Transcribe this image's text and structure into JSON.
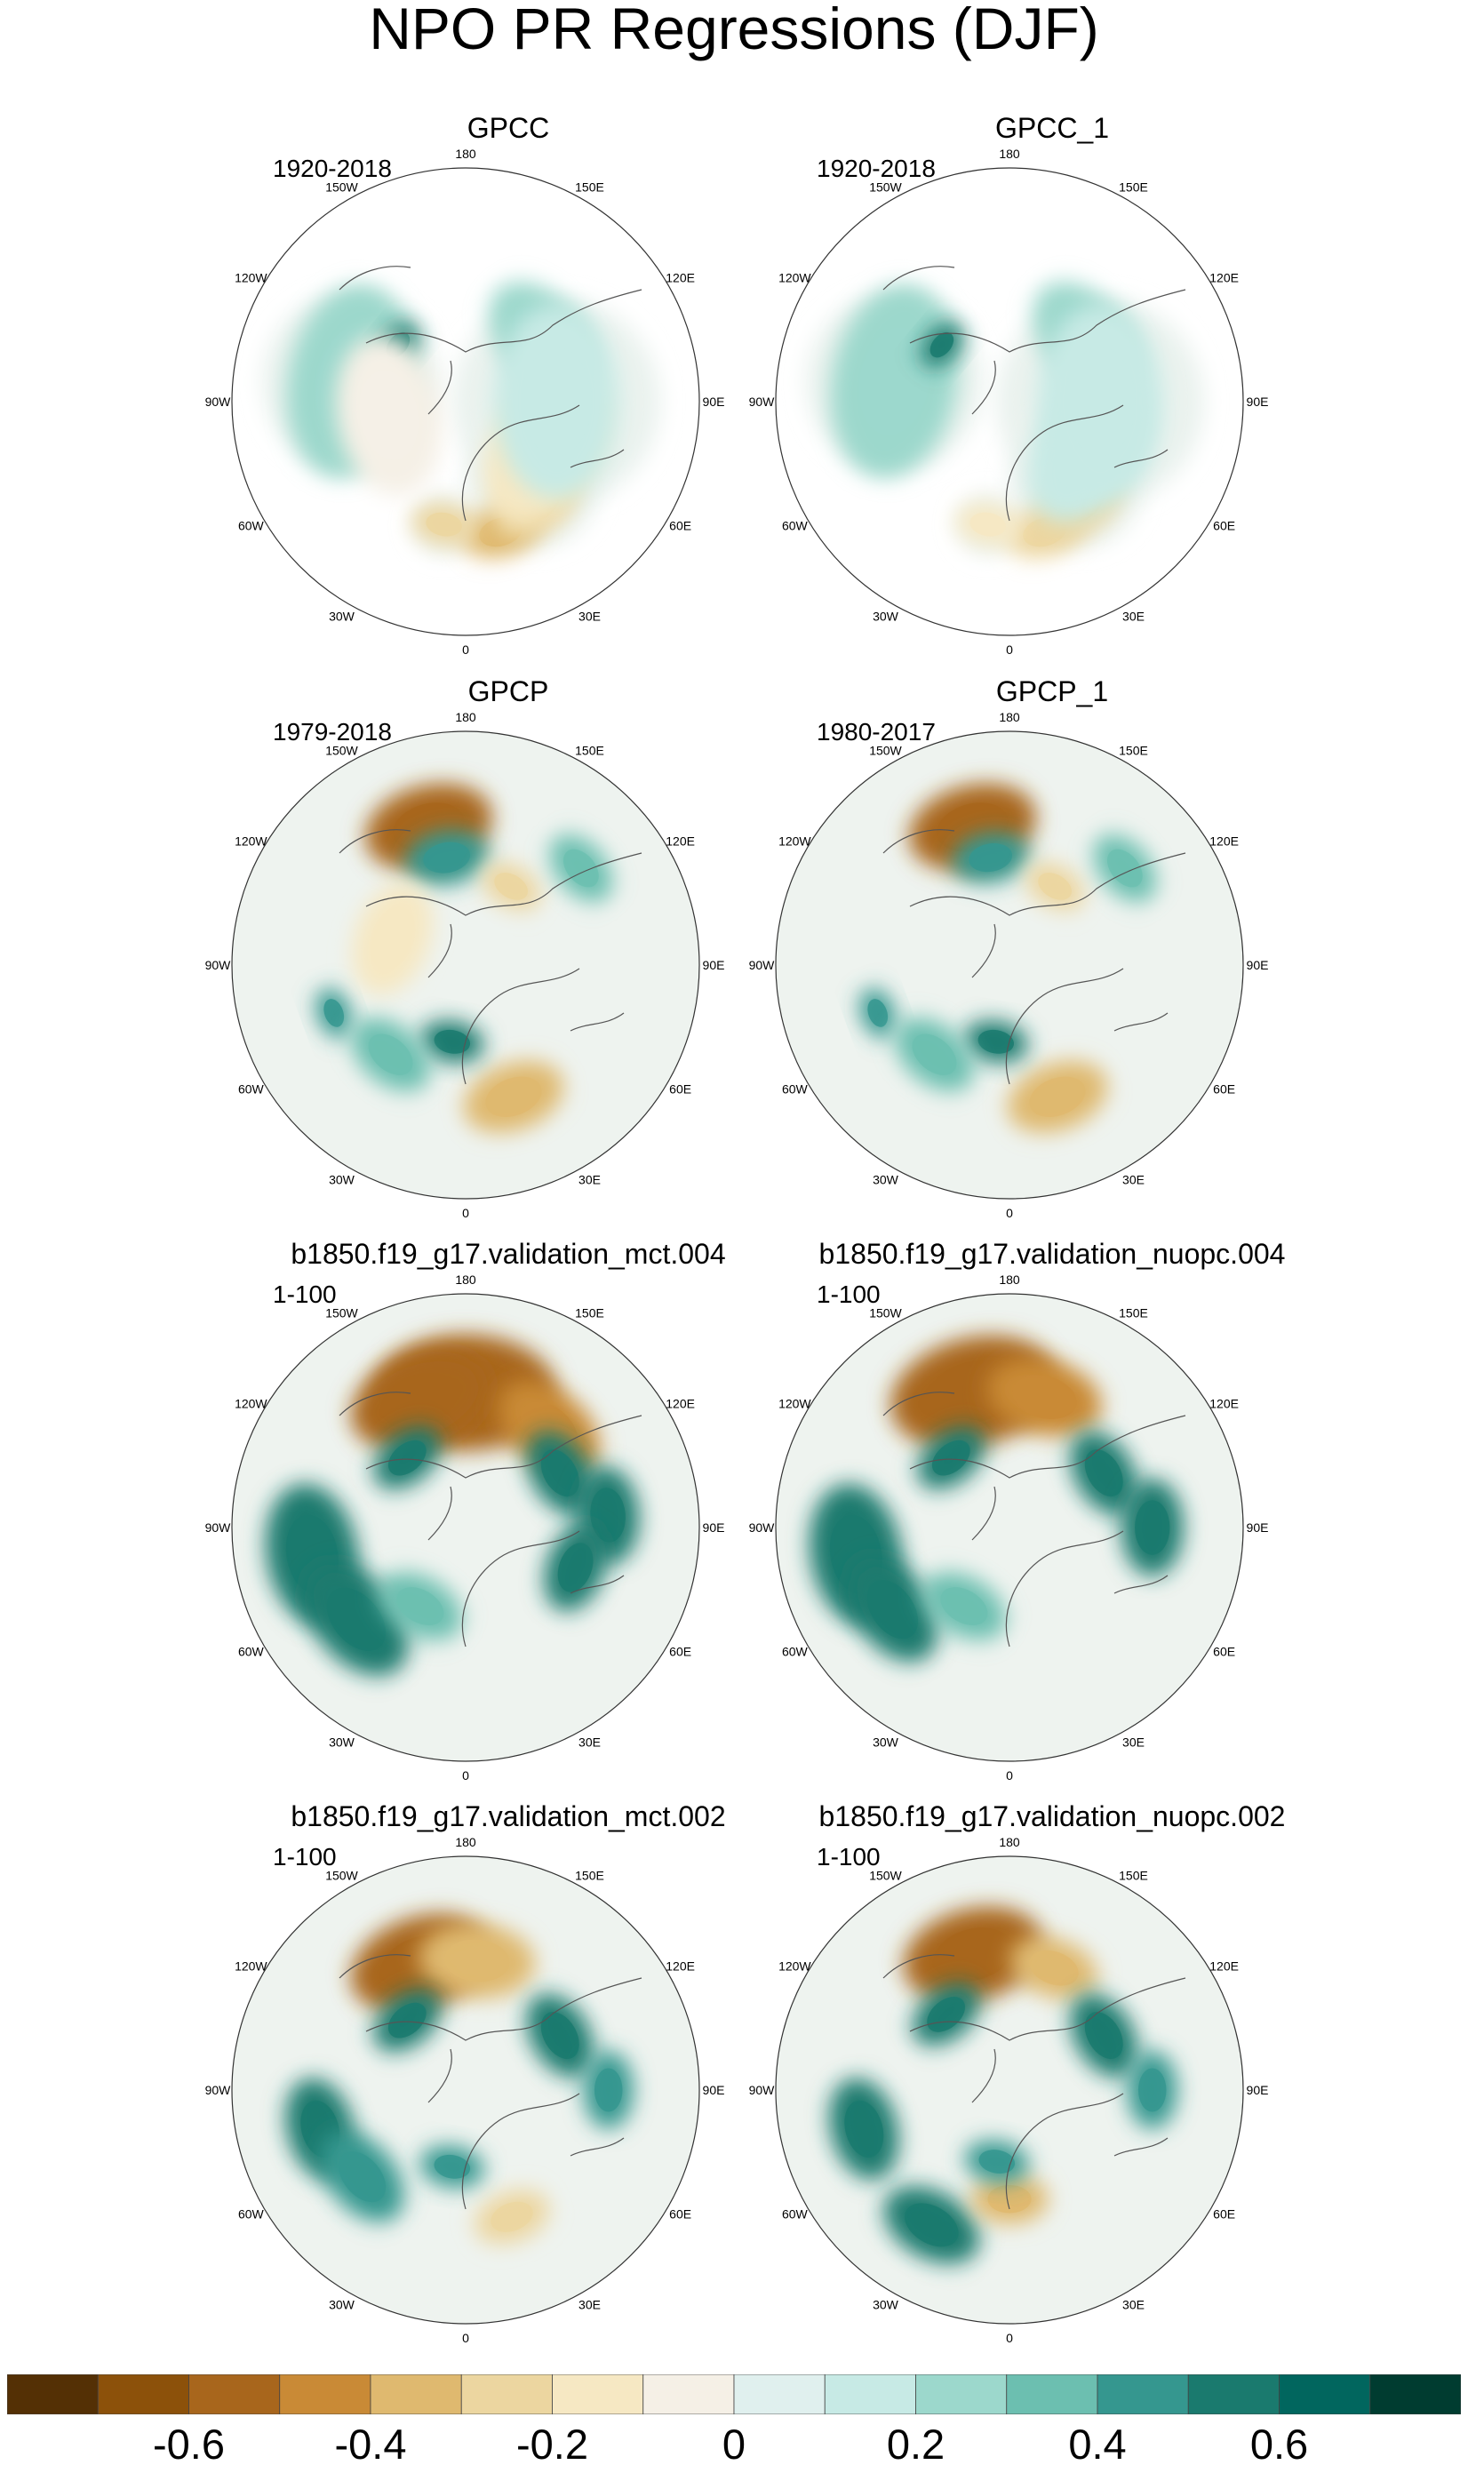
{
  "title": "NPO PR Regressions (DJF)",
  "panels": [
    {
      "title": "GPCC",
      "period": "1920-2018"
    },
    {
      "title": "GPCC_1",
      "period": "1920-2018"
    },
    {
      "title": "GPCP",
      "period": "1979-2018"
    },
    {
      "title": "GPCP_1",
      "period": "1980-2017"
    },
    {
      "title": "b1850.f19_g17.validation_mct.004",
      "period": "1-100"
    },
    {
      "title": "b1850.f19_g17.validation_nuopc.004",
      "period": "1-100"
    },
    {
      "title": "b1850.f19_g17.validation_mct.002",
      "period": "1-100"
    },
    {
      "title": "b1850.f19_g17.validation_nuopc.002",
      "period": "1-100"
    }
  ],
  "longitude_labels": [
    "180",
    "150E",
    "120E",
    "90E",
    "60E",
    "30E",
    "0",
    "30W",
    "60W",
    "90W",
    "120W",
    "150W"
  ],
  "chart_data": {
    "type": "heatmap",
    "projection": "north-polar-stereographic",
    "variable": "PR",
    "season": "DJF",
    "colorbar": {
      "orientation": "horizontal",
      "placement": "bottom",
      "levels": [
        -0.6,
        -0.5,
        -0.4,
        -0.3,
        -0.2,
        -0.1,
        0,
        0.1,
        0.2,
        0.3,
        0.4,
        0.5,
        0.6
      ],
      "tick_labels": [
        "-0.6",
        "-0.4",
        "-0.2",
        "0",
        "0.2",
        "0.4",
        "0.6"
      ],
      "tick_values": [
        -0.6,
        -0.4,
        -0.2,
        0,
        0.2,
        0.4,
        0.6
      ],
      "colors": [
        "#543005",
        "#8c510a",
        "#a8661c",
        "#c98a36",
        "#dfb96f",
        "#ecd6a0",
        "#f6e8c3",
        "#f5f0e6",
        "#e0f0ee",
        "#c7eae5",
        "#9cd8cc",
        "#6cbfb0",
        "#35978f",
        "#1a7a6e",
        "#01665e",
        "#003c30"
      ]
    },
    "maps": [
      {
        "panel": "GPCC",
        "coverage": "land-only",
        "features": [
          {
            "value": -0.4,
            "lon": 15,
            "lat": 38,
            "size": 12
          },
          {
            "value": -0.3,
            "lon": 35,
            "lat": 42,
            "size": 14
          },
          {
            "value": -0.3,
            "lon": -10,
            "lat": 42,
            "size": 10
          },
          {
            "value": 0.2,
            "lon": 130,
            "lat": 52,
            "size": 20
          },
          {
            "value": 0.2,
            "lon": -100,
            "lat": 45,
            "size": 30
          },
          {
            "value": 0.5,
            "lon": -130,
            "lat": 56,
            "size": 8
          },
          {
            "value": -0.2,
            "lon": 60,
            "lat": 55,
            "size": 25
          },
          {
            "value": 0.1,
            "lon": 90,
            "lat": 55,
            "size": 30
          },
          {
            "value": -0.1,
            "lon": -80,
            "lat": 60,
            "size": 25
          }
        ]
      },
      {
        "panel": "GPCC_1",
        "coverage": "land-only",
        "features": [
          {
            "value": -0.3,
            "lon": 15,
            "lat": 38,
            "size": 12
          },
          {
            "value": -0.3,
            "lon": 35,
            "lat": 42,
            "size": 14
          },
          {
            "value": -0.2,
            "lon": -10,
            "lat": 42,
            "size": 10
          },
          {
            "value": 0.2,
            "lon": 130,
            "lat": 52,
            "size": 20
          },
          {
            "value": 0.2,
            "lon": -100,
            "lat": 45,
            "size": 30
          },
          {
            "value": 0.5,
            "lon": -130,
            "lat": 56,
            "size": 8
          },
          {
            "value": 0.1,
            "lon": 60,
            "lat": 55,
            "size": 25
          },
          {
            "value": 0.1,
            "lon": 90,
            "lat": 55,
            "size": 30
          }
        ]
      },
      {
        "panel": "GPCP",
        "coverage": "global",
        "features": [
          {
            "value": -0.6,
            "lon": -165,
            "lat": 35,
            "size": 20
          },
          {
            "value": 0.4,
            "lon": -170,
            "lat": 48,
            "size": 13
          },
          {
            "value": -0.4,
            "lon": 20,
            "lat": 36,
            "size": 16
          },
          {
            "value": 0.5,
            "lon": -10,
            "lat": 60,
            "size": 10
          },
          {
            "value": 0.4,
            "lon": -70,
            "lat": 36,
            "size": 8
          },
          {
            "value": 0.3,
            "lon": -40,
            "lat": 45,
            "size": 14
          },
          {
            "value": -0.3,
            "lon": 150,
            "lat": 55,
            "size": 10
          },
          {
            "value": 0.3,
            "lon": 130,
            "lat": 32,
            "size": 12
          },
          {
            "value": -0.2,
            "lon": -110,
            "lat": 60,
            "size": 18
          }
        ]
      },
      {
        "panel": "GPCP_1",
        "coverage": "global",
        "features": [
          {
            "value": -0.6,
            "lon": -165,
            "lat": 35,
            "size": 20
          },
          {
            "value": 0.4,
            "lon": -170,
            "lat": 48,
            "size": 12
          },
          {
            "value": -0.4,
            "lon": 20,
            "lat": 36,
            "size": 16
          },
          {
            "value": 0.5,
            "lon": -10,
            "lat": 60,
            "size": 10
          },
          {
            "value": 0.4,
            "lon": -70,
            "lat": 36,
            "size": 8
          },
          {
            "value": 0.3,
            "lon": -40,
            "lat": 45,
            "size": 14
          },
          {
            "value": -0.3,
            "lon": 150,
            "lat": 55,
            "size": 10
          },
          {
            "value": 0.3,
            "lon": 130,
            "lat": 32,
            "size": 12
          }
        ]
      },
      {
        "panel": "b1850.f19_g17.validation_mct.004",
        "coverage": "global",
        "features": [
          {
            "value": -0.6,
            "lon": 180,
            "lat": 38,
            "size": 28
          },
          {
            "value": -0.6,
            "lon": -160,
            "lat": 38,
            "size": 22
          },
          {
            "value": -0.5,
            "lon": 140,
            "lat": 40,
            "size": 18
          },
          {
            "value": 0.6,
            "lon": -80,
            "lat": 30,
            "size": 22
          },
          {
            "value": 0.5,
            "lon": -50,
            "lat": 35,
            "size": 20
          },
          {
            "value": 0.6,
            "lon": 120,
            "lat": 48,
            "size": 14
          },
          {
            "value": 0.5,
            "lon": 95,
            "lat": 35,
            "size": 15
          },
          {
            "value": 0.5,
            "lon": 70,
            "lat": 45,
            "size": 14
          },
          {
            "value": 0.5,
            "lon": -140,
            "lat": 55,
            "size": 12
          },
          {
            "value": 0.3,
            "lon": -30,
            "lat": 55,
            "size": 14
          }
        ]
      },
      {
        "panel": "b1850.f19_g17.validation_nuopc.004",
        "coverage": "global",
        "features": [
          {
            "value": -0.6,
            "lon": -165,
            "lat": 36,
            "size": 26
          },
          {
            "value": -0.5,
            "lon": 165,
            "lat": 38,
            "size": 18
          },
          {
            "value": 0.6,
            "lon": -80,
            "lat": 30,
            "size": 22
          },
          {
            "value": 0.5,
            "lon": -55,
            "lat": 35,
            "size": 18
          },
          {
            "value": 0.6,
            "lon": 120,
            "lat": 48,
            "size": 14
          },
          {
            "value": 0.5,
            "lon": 90,
            "lat": 35,
            "size": 15
          },
          {
            "value": 0.5,
            "lon": -140,
            "lat": 55,
            "size": 12
          },
          {
            "value": 0.3,
            "lon": -30,
            "lat": 55,
            "size": 14
          }
        ]
      },
      {
        "panel": "b1850.f19_g17.validation_mct.002",
        "coverage": "global",
        "features": [
          {
            "value": -0.6,
            "lon": -160,
            "lat": 38,
            "size": 22
          },
          {
            "value": -0.4,
            "lon": 175,
            "lat": 40,
            "size": 18
          },
          {
            "value": 0.6,
            "lon": -75,
            "lat": 32,
            "size": 16
          },
          {
            "value": 0.4,
            "lon": -50,
            "lat": 38,
            "size": 16
          },
          {
            "value": 0.5,
            "lon": 120,
            "lat": 48,
            "size": 14
          },
          {
            "value": 0.4,
            "lon": 90,
            "lat": 35,
            "size": 12
          },
          {
            "value": 0.5,
            "lon": -140,
            "lat": 55,
            "size": 12
          },
          {
            "value": 0.4,
            "lon": -10,
            "lat": 60,
            "size": 10
          },
          {
            "value": -0.3,
            "lon": 20,
            "lat": 38,
            "size": 12
          }
        ]
      },
      {
        "panel": "b1850.f19_g17.validation_nuopc.002",
        "coverage": "global",
        "features": [
          {
            "value": -0.6,
            "lon": -165,
            "lat": 36,
            "size": 22
          },
          {
            "value": -0.4,
            "lon": 160,
            "lat": 40,
            "size": 14
          },
          {
            "value": 0.6,
            "lon": -140,
            "lat": 52,
            "size": 12
          },
          {
            "value": 0.5,
            "lon": -75,
            "lat": 32,
            "size": 16
          },
          {
            "value": 0.5,
            "lon": -30,
            "lat": 30,
            "size": 16
          },
          {
            "value": 0.5,
            "lon": 120,
            "lat": 48,
            "size": 14
          },
          {
            "value": 0.4,
            "lon": 90,
            "lat": 35,
            "size": 12
          },
          {
            "value": -0.4,
            "lon": 0,
            "lat": 48,
            "size": 12
          },
          {
            "value": 0.4,
            "lon": -10,
            "lat": 62,
            "size": 10
          }
        ]
      }
    ]
  }
}
